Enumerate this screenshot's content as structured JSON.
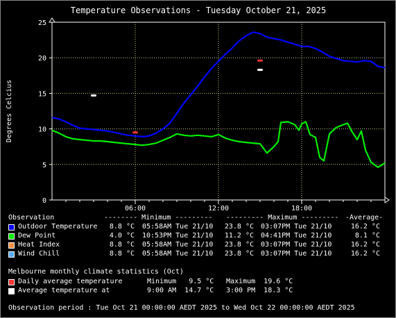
{
  "colors": {
    "outdoor": "#0000ff",
    "dew": "#00ee00",
    "heat": "#ff8c40",
    "chill": "#55aaff",
    "daily_avg_marker": "#ff3333",
    "avg_temp_marker": "#ffffff",
    "grid": "#c8d888",
    "plot_bg": "#000000",
    "frame_bg": "#000000"
  },
  "chart_data": {
    "type": "line",
    "title": "Temperature Observations - Tuesday October 21, 2025",
    "ylabel": "Degrees Celcius",
    "xlabel": "",
    "xlim": [
      0,
      24
    ],
    "ylim": [
      0,
      25
    ],
    "x_ticks": [
      6,
      12,
      18
    ],
    "x_tick_labels": [
      "06:00",
      "12:00",
      "18:00"
    ],
    "y_ticks": [
      0,
      5,
      10,
      15,
      20,
      25
    ],
    "y_tick_labels": [
      "0",
      "5",
      "10",
      "15",
      "20",
      "25"
    ],
    "grid": true,
    "series": [
      {
        "name": "Outdoor Temperature",
        "x": [
          0,
          0.5,
          1,
          1.5,
          2,
          2.5,
          3,
          3.5,
          4,
          4.5,
          5,
          5.5,
          6,
          6.5,
          7,
          7.5,
          8,
          8.5,
          9,
          9.5,
          10,
          10.5,
          11,
          11.5,
          12,
          12.5,
          13,
          13.5,
          14,
          14.5,
          15,
          15.5,
          16,
          16.5,
          17,
          17.5,
          18,
          18.5,
          19,
          19.5,
          20,
          20.5,
          21,
          21.5,
          22,
          22.5,
          23,
          23.5,
          24
        ],
        "y": [
          11.6,
          11.4,
          11.0,
          10.5,
          10.1,
          10.0,
          9.9,
          9.8,
          9.7,
          9.5,
          9.3,
          9.1,
          9.0,
          8.9,
          9.0,
          9.4,
          10.0,
          10.8,
          12.2,
          13.6,
          14.8,
          16.0,
          17.3,
          18.5,
          19.5,
          20.5,
          21.4,
          22.4,
          23.1,
          23.6,
          23.4,
          22.9,
          22.7,
          22.5,
          22.2,
          21.9,
          21.6,
          21.6,
          21.3,
          20.8,
          20.2,
          19.9,
          19.6,
          19.5,
          19.4,
          19.6,
          19.5,
          18.8,
          18.6
        ]
      },
      {
        "name": "Dew Point",
        "x": [
          0,
          0.5,
          1,
          1.5,
          2,
          2.5,
          3,
          3.5,
          4,
          4.5,
          5,
          5.5,
          6,
          6.5,
          7,
          7.5,
          8,
          8.5,
          9,
          9.5,
          10,
          10.5,
          11,
          11.5,
          12,
          12.5,
          13,
          13.5,
          14,
          14.5,
          15,
          15.5,
          16,
          16.3,
          16.5,
          17,
          17.5,
          17.8,
          18,
          18.3,
          18.6,
          19,
          19.3,
          19.6,
          20,
          20.5,
          21,
          21.3,
          21.6,
          22,
          22.3,
          22.6,
          23,
          23.5,
          24
        ],
        "y": [
          9.8,
          9.4,
          8.9,
          8.6,
          8.5,
          8.4,
          8.3,
          8.3,
          8.2,
          8.1,
          8.0,
          7.9,
          7.8,
          7.7,
          7.8,
          8.0,
          8.4,
          8.8,
          9.3,
          9.1,
          9.0,
          9.1,
          9.0,
          8.9,
          9.2,
          8.7,
          8.4,
          8.2,
          8.1,
          8.0,
          7.9,
          6.6,
          7.5,
          8.2,
          10.9,
          11.0,
          10.6,
          9.8,
          10.7,
          11.0,
          9.2,
          8.8,
          6.0,
          5.5,
          9.3,
          10.2,
          10.6,
          10.8,
          9.7,
          8.5,
          9.7,
          7.0,
          5.3,
          4.6,
          5.2
        ]
      }
    ],
    "markers": [
      {
        "name": "Daily average temperature",
        "color_key": "daily_avg_marker",
        "points": [
          {
            "x": 6,
            "y": 9.5
          },
          {
            "x": 15,
            "y": 19.6
          }
        ]
      },
      {
        "name": "Average temperature at",
        "color_key": "avg_temp_marker",
        "points": [
          {
            "x": 3,
            "y": 14.7
          },
          {
            "x": 15,
            "y": 18.3
          }
        ]
      }
    ]
  },
  "legend": {
    "header": [
      "Observation",
      "-------- Minimum ---------",
      "--------- Maximum ---------",
      "-Average-"
    ],
    "rows": [
      {
        "color_key": "outdoor",
        "name": "Outdoor Temperature",
        "min": "8.8 °C",
        "min_time": "05:58AM Tue 21/10",
        "max": "23.8 °C",
        "max_time": "03:07PM Tue 21/10",
        "avg": "16.2 °C"
      },
      {
        "color_key": "dew",
        "name": "Dew Point",
        "min": "4.0 °C",
        "min_time": "10:53PM Tue 21/10",
        "max": "11.2 °C",
        "max_time": "04:41PM Tue 21/10",
        "avg": "8.1 °C"
      },
      {
        "color_key": "heat",
        "name": "Heat Index",
        "min": "8.8 °C",
        "min_time": "05:58AM Tue 21/10",
        "max": "23.8 °C",
        "max_time": "03:07PM Tue 21/10",
        "avg": "16.2 °C"
      },
      {
        "color_key": "chill",
        "name": "Wind Chill",
        "min": "8.8 °C",
        "min_time": "05:58AM Tue 21/10",
        "max": "23.8 °C",
        "max_time": "03:07PM Tue 21/10",
        "avg": "16.2 °C"
      }
    ]
  },
  "climate": {
    "heading": "Melbourne monthly climate statistics (Oct)",
    "rows": [
      {
        "color_key": "daily_avg_marker",
        "label": "Daily average temperature",
        "col1": "Minimum   9.5 °C",
        "col2": "Maximum  19.6 °C"
      },
      {
        "color_key": "avg_temp_marker",
        "label": "Average temperature at",
        "col1": "9:00 AM  14.7 °C",
        "col2": "3:00 PM  18.3 °C"
      }
    ]
  },
  "footer": "Observation period : Tue Oct 21 00:00:00 AEDT 2025 to Wed Oct 22 00:00:00 AEDT 2025"
}
